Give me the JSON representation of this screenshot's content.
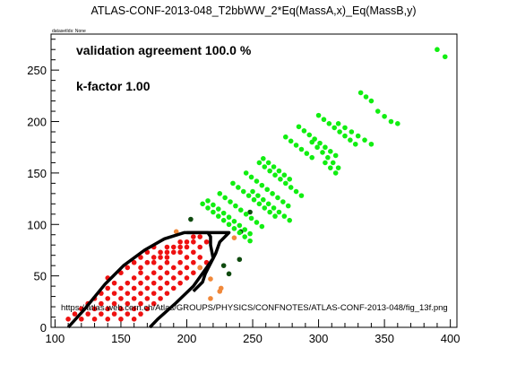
{
  "chart_data": {
    "type": "scatter",
    "title": "ATLAS-CONF-2013-048_T2bbWW_2*Eq(MassA,x)_Eq(MassB,y)",
    "dataset_note": "datasetIds: None",
    "annotations": {
      "agreement": "validation agreement 100.0 %",
      "kfactor": "k-factor 1.00",
      "url": "https://atlas.web.cern.ch/Atlas/GROUPS/PHYSICS/CONFNOTES/ATLAS-CONF-2013-048/fig_13f.png"
    },
    "xlim": [
      97,
      405
    ],
    "ylim": [
      0,
      285
    ],
    "xticks": [
      100,
      150,
      200,
      250,
      300,
      350,
      400
    ],
    "yticks": [
      0,
      50,
      100,
      150,
      200,
      250
    ],
    "grid": false,
    "colors": {
      "excluded": "#ee1111",
      "allowed": "#11ee11",
      "border_orange": "#f0883a",
      "border_dark": "#0f4a0f",
      "contour": "#000000"
    },
    "series": [
      {
        "color_key": "excluded",
        "points": [
          [
            110,
            8
          ],
          [
            115,
            13
          ],
          [
            120,
            18
          ],
          [
            125,
            23
          ],
          [
            130,
            28
          ],
          [
            135,
            33
          ],
          [
            140,
            38
          ],
          [
            145,
            43
          ],
          [
            120,
            8
          ],
          [
            125,
            13
          ],
          [
            130,
            18
          ],
          [
            135,
            23
          ],
          [
            140,
            28
          ],
          [
            145,
            33
          ],
          [
            150,
            38
          ],
          [
            155,
            43
          ],
          [
            160,
            48
          ],
          [
            165,
            53
          ],
          [
            130,
            8
          ],
          [
            135,
            13
          ],
          [
            140,
            18
          ],
          [
            145,
            23
          ],
          [
            150,
            28
          ],
          [
            155,
            33
          ],
          [
            160,
            38
          ],
          [
            165,
            43
          ],
          [
            170,
            48
          ],
          [
            175,
            53
          ],
          [
            180,
            58
          ],
          [
            185,
            63
          ],
          [
            140,
            8
          ],
          [
            145,
            13
          ],
          [
            150,
            18
          ],
          [
            155,
            23
          ],
          [
            160,
            28
          ],
          [
            165,
            33
          ],
          [
            170,
            38
          ],
          [
            175,
            43
          ],
          [
            180,
            48
          ],
          [
            185,
            53
          ],
          [
            190,
            58
          ],
          [
            195,
            63
          ],
          [
            200,
            68
          ],
          [
            150,
            8
          ],
          [
            155,
            13
          ],
          [
            160,
            18
          ],
          [
            165,
            23
          ],
          [
            170,
            28
          ],
          [
            175,
            33
          ],
          [
            180,
            38
          ],
          [
            185,
            43
          ],
          [
            190,
            48
          ],
          [
            195,
            53
          ],
          [
            200,
            58
          ],
          [
            205,
            63
          ],
          [
            210,
            68
          ],
          [
            160,
            8
          ],
          [
            165,
            13
          ],
          [
            170,
            18
          ],
          [
            175,
            23
          ],
          [
            180,
            28
          ],
          [
            185,
            33
          ],
          [
            190,
            38
          ],
          [
            195,
            43
          ],
          [
            200,
            48
          ],
          [
            205,
            53
          ],
          [
            210,
            58
          ],
          [
            215,
            63
          ],
          [
            165,
            58
          ],
          [
            170,
            63
          ],
          [
            175,
            68
          ],
          [
            180,
            73
          ],
          [
            185,
            78
          ],
          [
            175,
            63
          ],
          [
            180,
            68
          ],
          [
            185,
            73
          ],
          [
            190,
            78
          ],
          [
            195,
            83
          ],
          [
            185,
            68
          ],
          [
            190,
            73
          ],
          [
            195,
            78
          ],
          [
            200,
            83
          ],
          [
            205,
            88
          ],
          [
            195,
            73
          ],
          [
            200,
            78
          ],
          [
            205,
            83
          ],
          [
            210,
            88
          ],
          [
            205,
            73
          ],
          [
            210,
            78
          ],
          [
            215,
            83
          ],
          [
            140,
            48
          ],
          [
            150,
            53
          ],
          [
            155,
            58
          ],
          [
            160,
            63
          ],
          [
            165,
            68
          ],
          [
            170,
            73
          ],
          [
            175,
            78
          ]
        ]
      },
      {
        "color_key": "border_orange",
        "points": [
          [
            192,
            93
          ],
          [
            210,
            58
          ],
          [
            218,
            47
          ],
          [
            226,
            38
          ],
          [
            236,
            87
          ],
          [
            218,
            28
          ],
          [
            225,
            35
          ]
        ]
      },
      {
        "color_key": "border_dark",
        "points": [
          [
            203,
            105
          ],
          [
            228,
            60
          ],
          [
            232,
            52
          ],
          [
            241,
            93
          ],
          [
            248,
            112
          ],
          [
            240,
            66
          ]
        ]
      },
      {
        "color_key": "allowed",
        "points": [
          [
            212,
            120
          ],
          [
            216,
            116
          ],
          [
            220,
            112
          ],
          [
            224,
            108
          ],
          [
            228,
            104
          ],
          [
            232,
            100
          ],
          [
            236,
            96
          ],
          [
            240,
            92
          ],
          [
            244,
            88
          ],
          [
            248,
            84
          ],
          [
            216,
            123
          ],
          [
            220,
            119
          ],
          [
            224,
            115
          ],
          [
            228,
            111
          ],
          [
            232,
            107
          ],
          [
            236,
            103
          ],
          [
            240,
            99
          ],
          [
            244,
            95
          ],
          [
            248,
            91
          ],
          [
            225,
            130
          ],
          [
            229,
            126
          ],
          [
            233,
            122
          ],
          [
            237,
            118
          ],
          [
            241,
            114
          ],
          [
            245,
            110
          ],
          [
            249,
            106
          ],
          [
            253,
            102
          ],
          [
            257,
            98
          ],
          [
            235,
            140
          ],
          [
            239,
            136
          ],
          [
            243,
            132
          ],
          [
            247,
            128
          ],
          [
            251,
            124
          ],
          [
            255,
            120
          ],
          [
            259,
            116
          ],
          [
            263,
            112
          ],
          [
            267,
            108
          ],
          [
            245,
            150
          ],
          [
            249,
            146
          ],
          [
            253,
            142
          ],
          [
            257,
            138
          ],
          [
            261,
            134
          ],
          [
            265,
            130
          ],
          [
            269,
            126
          ],
          [
            273,
            122
          ],
          [
            277,
            118
          ],
          [
            255,
            160
          ],
          [
            259,
            156
          ],
          [
            263,
            152
          ],
          [
            267,
            148
          ],
          [
            271,
            144
          ],
          [
            275,
            140
          ],
          [
            279,
            136
          ],
          [
            283,
            132
          ],
          [
            287,
            128
          ],
          [
            250,
            132
          ],
          [
            254,
            128
          ],
          [
            258,
            124
          ],
          [
            262,
            120
          ],
          [
            266,
            116
          ],
          [
            270,
            112
          ],
          [
            274,
            108
          ],
          [
            278,
            104
          ],
          [
            258,
            164
          ],
          [
            262,
            160
          ],
          [
            266,
            156
          ],
          [
            270,
            152
          ],
          [
            274,
            148
          ],
          [
            278,
            144
          ],
          [
            275,
            185
          ],
          [
            279,
            181
          ],
          [
            283,
            177
          ],
          [
            287,
            173
          ],
          [
            291,
            169
          ],
          [
            295,
            165
          ],
          [
            285,
            195
          ],
          [
            289,
            191
          ],
          [
            293,
            187
          ],
          [
            297,
            183
          ],
          [
            301,
            179
          ],
          [
            305,
            175
          ],
          [
            309,
            171
          ],
          [
            313,
            167
          ],
          [
            300,
            206
          ],
          [
            304,
            202
          ],
          [
            308,
            198
          ],
          [
            312,
            194
          ],
          [
            316,
            190
          ],
          [
            320,
            186
          ],
          [
            324,
            182
          ],
          [
            328,
            178
          ],
          [
            295,
            180
          ],
          [
            299,
            175
          ],
          [
            303,
            170
          ],
          [
            307,
            165
          ],
          [
            311,
            160
          ],
          [
            315,
            155
          ],
          [
            305,
            160
          ],
          [
            309,
            155
          ],
          [
            313,
            150
          ],
          [
            332,
            228
          ],
          [
            336,
            224
          ],
          [
            340,
            220
          ],
          [
            345,
            210
          ],
          [
            350,
            205
          ],
          [
            355,
            200
          ],
          [
            360,
            198
          ],
          [
            315,
            198
          ],
          [
            320,
            194
          ],
          [
            325,
            190
          ],
          [
            330,
            186
          ],
          [
            335,
            182
          ],
          [
            340,
            178
          ],
          [
            390,
            270
          ],
          [
            396,
            263
          ]
        ]
      }
    ],
    "contour": [
      [
        110,
        0
      ],
      [
        122,
        17
      ],
      [
        138,
        42
      ],
      [
        152,
        60
      ],
      [
        168,
        75
      ],
      [
        183,
        86
      ],
      [
        198,
        92
      ],
      [
        216,
        92
      ],
      [
        218,
        88
      ],
      [
        218,
        80
      ],
      [
        220,
        67
      ],
      [
        215,
        58
      ],
      [
        205,
        40
      ],
      [
        192,
        24
      ],
      [
        178,
        8
      ],
      [
        172,
        0
      ]
    ],
    "contour_inner": [
      [
        200,
        92
      ],
      [
        232,
        92
      ],
      [
        225,
        83
      ],
      [
        222,
        72
      ],
      [
        216,
        57
      ],
      [
        214,
        52
      ],
      [
        212,
        44
      ],
      [
        205,
        35
      ]
    ]
  }
}
